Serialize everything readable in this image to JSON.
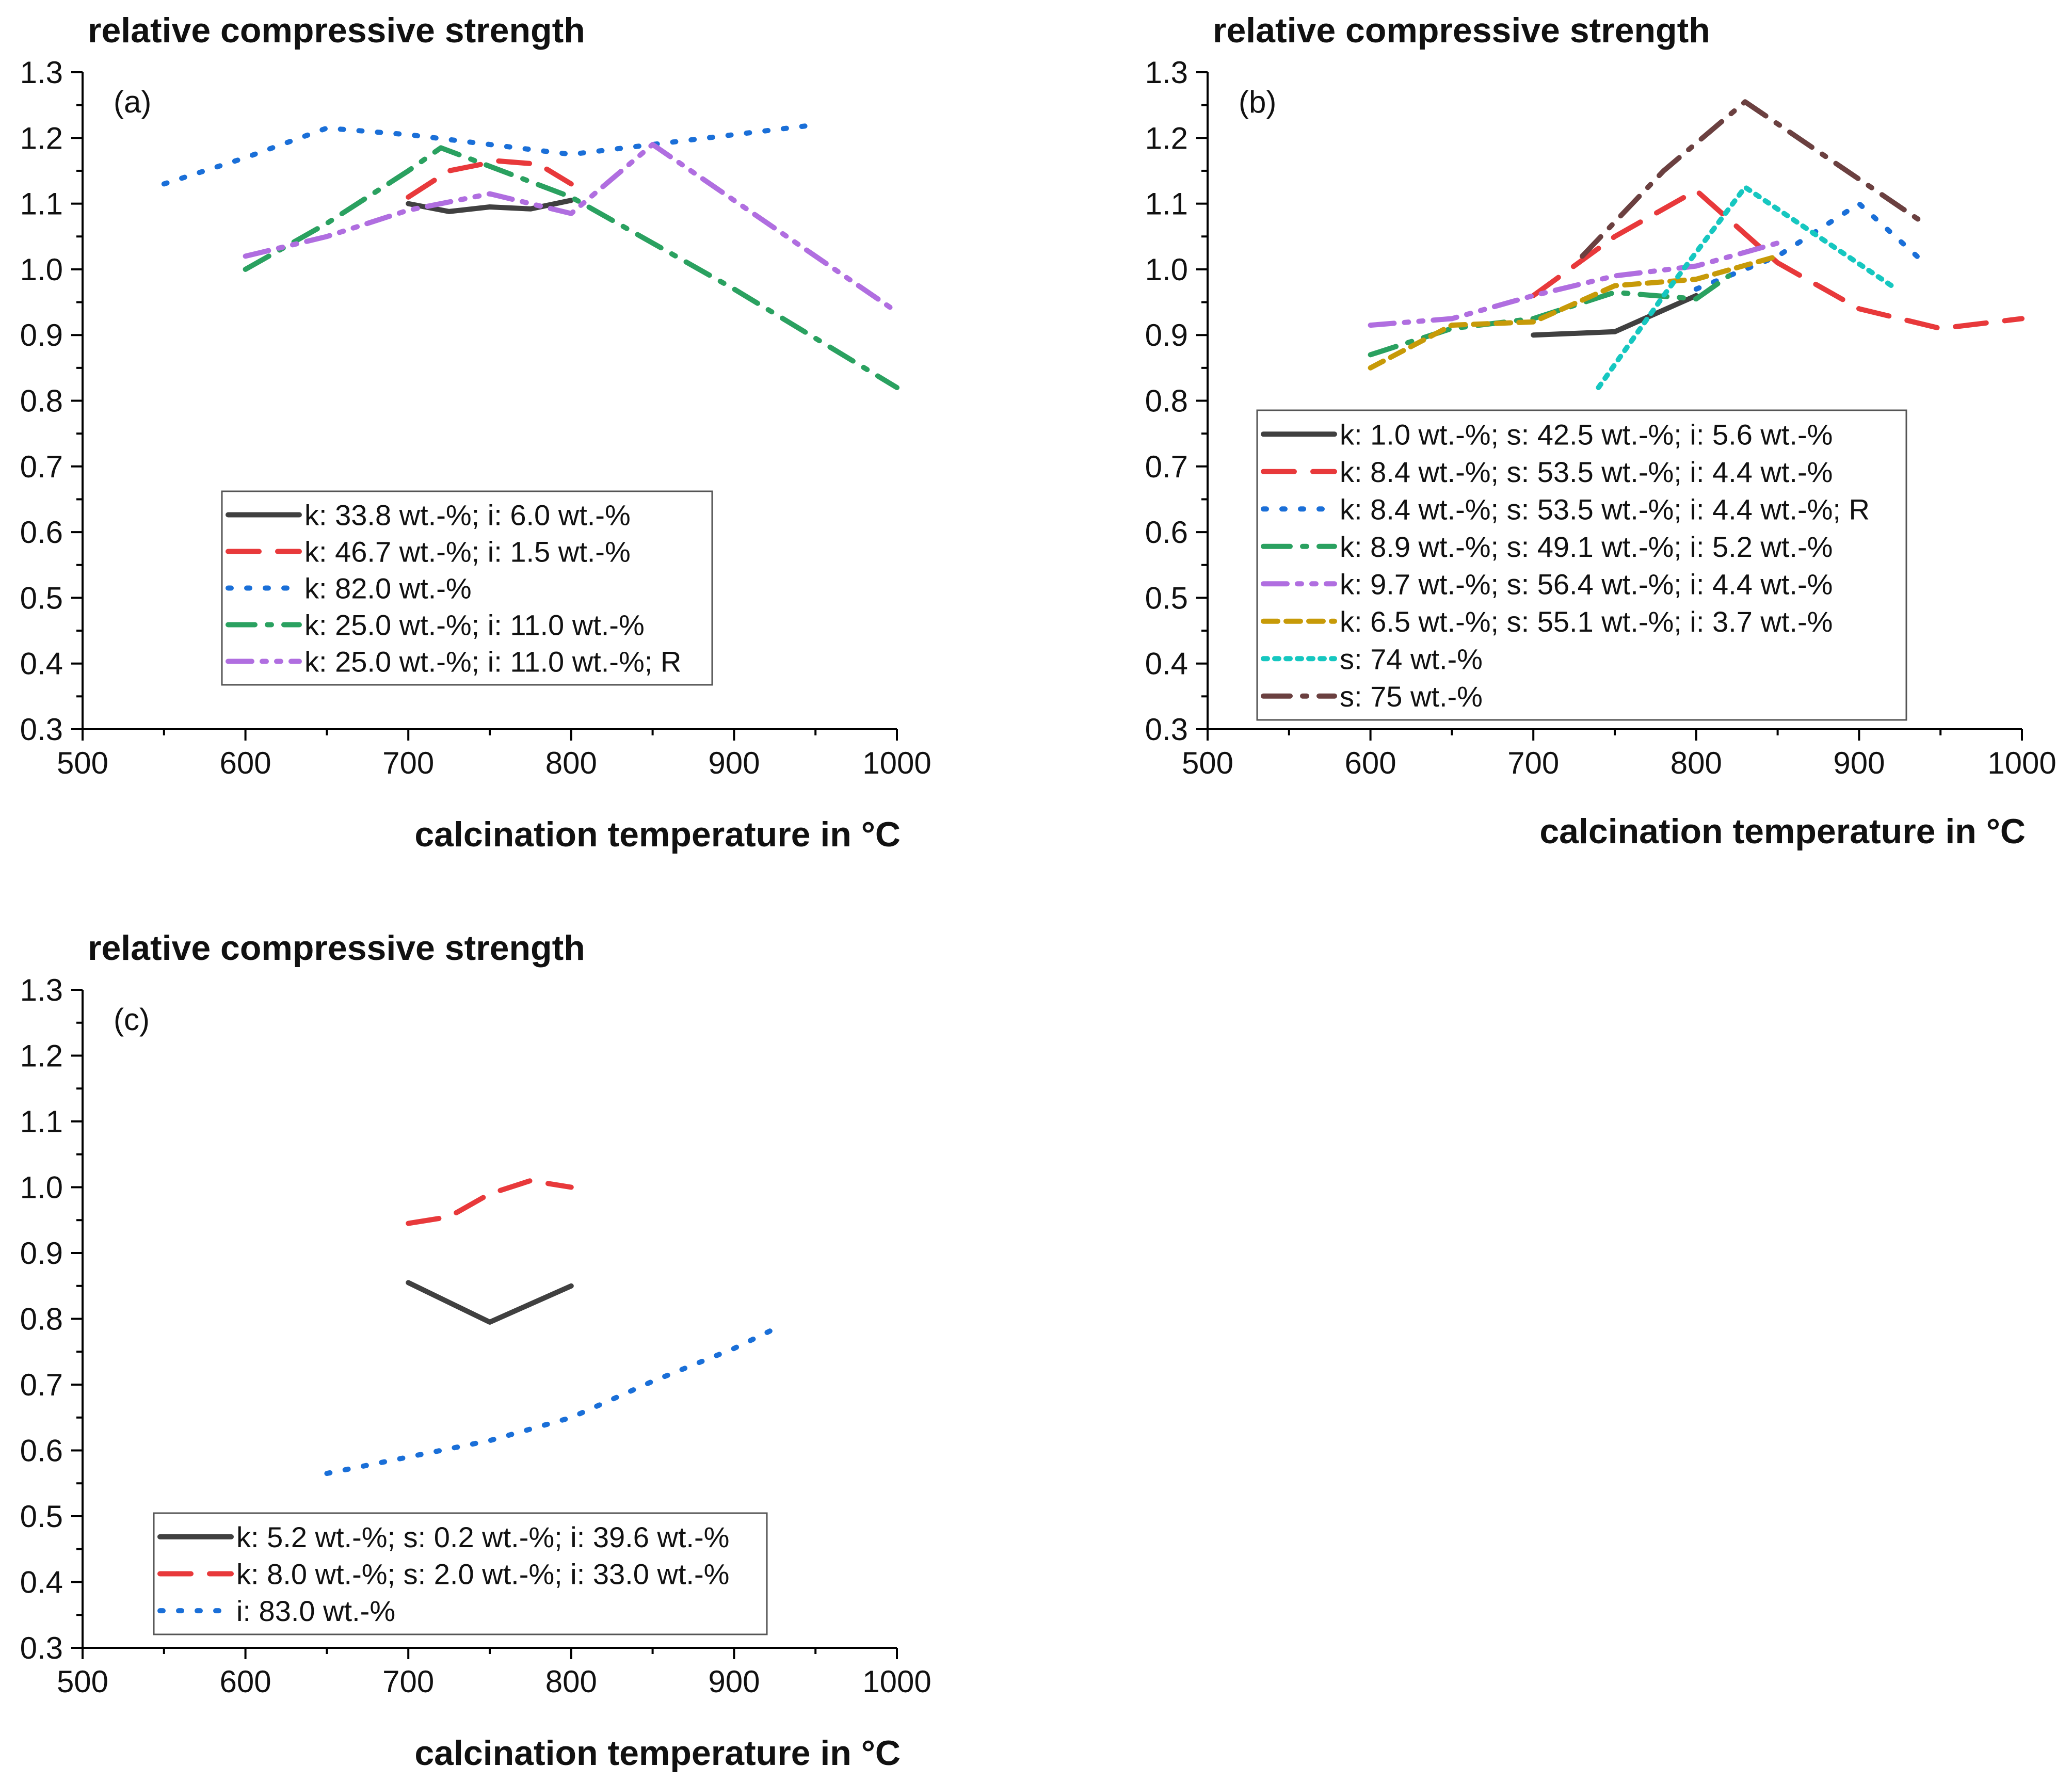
{
  "figure": {
    "panels": [
      "a",
      "b",
      "c"
    ]
  },
  "chart_data": [
    {
      "id": "a",
      "type": "line",
      "panel_label": "(a)",
      "title": "relative compressive strength",
      "xlabel": "calcination temperature in °C",
      "ylabel": "",
      "xlim": [
        500,
        1000
      ],
      "ylim": [
        0.3,
        1.3
      ],
      "xticks": [
        "500",
        "600",
        "700",
        "800",
        "900",
        "1000"
      ],
      "yticks": [
        "0.3",
        "0.4",
        "0.5",
        "0.6",
        "0.7",
        "0.8",
        "0.9",
        "1.0",
        "1.1",
        "1.2",
        "1.3"
      ],
      "legend_position": "lower-middle",
      "series": [
        {
          "name": "k: 33.8 wt.-%; i: 6.0 wt.-%",
          "color": "#404040",
          "style": "solid",
          "x": [
            700,
            725,
            750,
            775,
            800
          ],
          "y": [
            1.1,
            1.088,
            1.095,
            1.092,
            1.105
          ]
        },
        {
          "name": "k: 46.7 wt.-%; i: 1.5 wt.-%",
          "color": "#e8393b",
          "style": "dash",
          "x": [
            700,
            725,
            755,
            780,
            800
          ],
          "y": [
            1.11,
            1.15,
            1.165,
            1.16,
            1.13
          ]
        },
        {
          "name": "k: 82.0 wt.-%",
          "color": "#1a6fd8",
          "style": "dot",
          "x": [
            550,
            600,
            650,
            700,
            750,
            800,
            850,
            900,
            950
          ],
          "y": [
            1.13,
            1.17,
            1.215,
            1.205,
            1.19,
            1.175,
            1.19,
            1.205,
            1.22
          ]
        },
        {
          "name": "k: 25.0 wt.-%; i: 11.0 wt.-%",
          "color": "#2aa160",
          "style": "dashdot",
          "x": [
            600,
            650,
            700,
            720,
            800,
            900,
            1000
          ],
          "y": [
            1.0,
            1.07,
            1.15,
            1.185,
            1.11,
            0.97,
            0.82
          ]
        },
        {
          "name": "k: 25.0 wt.-%; i: 11.0 wt.-%; R",
          "color": "#b06ee0",
          "style": "dashdotdot",
          "x": [
            600,
            650,
            700,
            750,
            800,
            850,
            1000
          ],
          "y": [
            1.02,
            1.05,
            1.09,
            1.115,
            1.085,
            1.19,
            0.935
          ]
        }
      ]
    },
    {
      "id": "b",
      "type": "line",
      "panel_label": "(b)",
      "title": "relative compressive strength",
      "xlabel": "calcination temperature in °C",
      "ylabel": "",
      "xlim": [
        500,
        1000
      ],
      "ylim": [
        0.3,
        1.3
      ],
      "xticks": [
        "500",
        "600",
        "700",
        "800",
        "900",
        "1000"
      ],
      "yticks": [
        "0.3",
        "0.4",
        "0.5",
        "0.6",
        "0.7",
        "0.8",
        "0.9",
        "1.0",
        "1.1",
        "1.2",
        "1.3"
      ],
      "legend_position": "lower-left",
      "series": [
        {
          "name": "k: 1.0 wt.-%; s: 42.5 wt.-%; i: 5.6 wt.-%",
          "color": "#404040",
          "style": "solid",
          "x": [
            700,
            750,
            800
          ],
          "y": [
            0.9,
            0.905,
            0.96
          ]
        },
        {
          "name": "k: 8.4 wt.-%; s: 53.5 wt.-%; i: 4.4 wt.-%",
          "color": "#e8393b",
          "style": "dash",
          "x": [
            700,
            750,
            800,
            850,
            900,
            950,
            1000
          ],
          "y": [
            0.96,
            1.05,
            1.12,
            1.01,
            0.94,
            0.91,
            0.925
          ]
        },
        {
          "name": "k: 8.4 wt.-%; s: 53.5 wt.-%; i: 4.4 wt.-%; R",
          "color": "#1a6fd8",
          "style": "dot",
          "x": [
            800,
            850,
            900,
            940
          ],
          "y": [
            0.97,
            1.02,
            1.1,
            1.01
          ]
        },
        {
          "name": "k: 8.9 wt.-%; s: 49.1 wt.-%; i: 5.2 wt.-%",
          "color": "#2aa160",
          "style": "dashdot",
          "x": [
            600,
            650,
            700,
            750,
            800,
            820
          ],
          "y": [
            0.87,
            0.91,
            0.925,
            0.965,
            0.955,
            0.99
          ]
        },
        {
          "name": "k: 9.7 wt.-%; s: 56.4 wt.-%; i: 4.4 wt.-%",
          "color": "#b06ee0",
          "style": "dashdotdot",
          "x": [
            600,
            650,
            700,
            750,
            800,
            850
          ],
          "y": [
            0.915,
            0.925,
            0.96,
            0.99,
            1.005,
            1.04
          ]
        },
        {
          "name": "k: 6.5 wt.-%; s: 55.1 wt.-%; i: 3.7 wt.-%",
          "color": "#c79a08",
          "style": "shortdash",
          "x": [
            600,
            650,
            700,
            750,
            800,
            850
          ],
          "y": [
            0.85,
            0.915,
            0.92,
            0.975,
            0.985,
            1.02
          ]
        },
        {
          "name": "s: 74 wt.-%",
          "color": "#16c7c0",
          "style": "shortdot",
          "x": [
            740,
            780,
            830,
            920
          ],
          "y": [
            0.82,
            0.96,
            1.125,
            0.975
          ]
        },
        {
          "name": "s: 75 wt.-%",
          "color": "#6b4040",
          "style": "dashdot",
          "x": [
            730,
            780,
            830,
            940
          ],
          "y": [
            1.02,
            1.15,
            1.255,
            1.07
          ]
        }
      ]
    },
    {
      "id": "c",
      "type": "line",
      "panel_label": "(c)",
      "title": "relative compressive strength",
      "xlabel": "calcination temperature in °C",
      "ylabel": "",
      "xlim": [
        500,
        1000
      ],
      "ylim": [
        0.3,
        1.3
      ],
      "xticks": [
        "500",
        "600",
        "700",
        "800",
        "900",
        "1000"
      ],
      "yticks": [
        "0.3",
        "0.4",
        "0.5",
        "0.6",
        "0.7",
        "0.8",
        "0.9",
        "1.0",
        "1.1",
        "1.2",
        "1.3"
      ],
      "legend_position": "bottom-left",
      "series": [
        {
          "name": "k: 5.2 wt.-%; s: 0.2 wt.-%; i: 39.6 wt.-%",
          "color": "#404040",
          "style": "solid",
          "x": [
            700,
            750,
            800
          ],
          "y": [
            0.855,
            0.795,
            0.85
          ]
        },
        {
          "name": "k: 8.0 wt.-%; s: 2.0 wt.-%; i: 33.0 wt.-%",
          "color": "#e8393b",
          "style": "dash",
          "x": [
            700,
            725,
            750,
            775,
            800
          ],
          "y": [
            0.945,
            0.955,
            0.99,
            1.01,
            1.0
          ]
        },
        {
          "name": "i: 83.0 wt.-%",
          "color": "#1a6fd8",
          "style": "dot",
          "x": [
            650,
            700,
            750,
            800,
            850,
            900,
            925
          ],
          "y": [
            0.565,
            0.59,
            0.615,
            0.65,
            0.705,
            0.755,
            0.785
          ]
        }
      ]
    }
  ]
}
